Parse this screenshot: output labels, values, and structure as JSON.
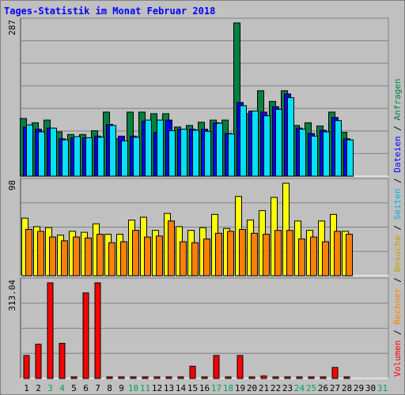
{
  "title": "Tages-Statistik im Monat Februar 2018",
  "chart_data": [
    {
      "type": "bar",
      "categories": [
        "1",
        "2",
        "3",
        "4",
        "5",
        "6",
        "7",
        "8",
        "9",
        "10",
        "11",
        "12",
        "13",
        "14",
        "15",
        "16",
        "17",
        "18",
        "19",
        "20",
        "21",
        "22",
        "23",
        "24",
        "25",
        "26",
        "27",
        "28",
        "29",
        "30",
        "31"
      ],
      "weekend_categories": [
        "3",
        "4",
        "10",
        "11",
        "17",
        "18",
        "24",
        "25",
        "31"
      ],
      "ymax_label": "287",
      "ylim": [
        0,
        287
      ],
      "series": [
        {
          "name": "Anfragen",
          "color": "#008040",
          "values": [
            108,
            100,
            105,
            83,
            78,
            78,
            85,
            120,
            70,
            120,
            120,
            117,
            117,
            92,
            95,
            101,
            105,
            105,
            287,
            117,
            160,
            140,
            160,
            95,
            100,
            94,
            120,
            82,
            0,
            0,
            0
          ]
        },
        {
          "name": "Dateien",
          "color": "#0000ff",
          "values": [
            92,
            88,
            90,
            70,
            72,
            72,
            75,
            97,
            75,
            75,
            103,
            82,
            105,
            88,
            88,
            88,
            100,
            80,
            138,
            122,
            120,
            130,
            154,
            90,
            80,
            86,
            110,
            70,
            0,
            0,
            0
          ]
        },
        {
          "name": "Seiten",
          "color": "#00e0ff",
          "values": [
            96,
            83,
            90,
            68,
            74,
            72,
            73,
            95,
            66,
            73,
            105,
            105,
            85,
            88,
            86,
            84,
            99,
            79,
            132,
            122,
            113,
            125,
            147,
            88,
            75,
            83,
            104,
            68,
            0,
            0,
            0
          ]
        }
      ]
    },
    {
      "type": "bar",
      "categories": [
        "1",
        "2",
        "3",
        "4",
        "5",
        "6",
        "7",
        "8",
        "9",
        "10",
        "11",
        "12",
        "13",
        "14",
        "15",
        "16",
        "17",
        "18",
        "19",
        "20",
        "21",
        "22",
        "23",
        "24",
        "25",
        "26",
        "27",
        "28",
        "29",
        "30",
        "31"
      ],
      "ymax_label": "98",
      "ylim": [
        0,
        98
      ],
      "series": [
        {
          "name": "Besuche",
          "color": "#ffff00",
          "values": [
            61,
            52,
            51,
            43,
            47,
            46,
            55,
            44,
            44,
            59,
            62,
            48,
            66,
            52,
            48,
            51,
            65,
            50,
            84,
            59,
            69,
            83,
            98,
            58,
            48,
            58,
            65,
            47,
            0,
            0,
            0
          ]
        },
        {
          "name": "Rechner",
          "color": "#ff8000",
          "values": [
            49,
            47,
            41,
            37,
            41,
            40,
            44,
            35,
            36,
            48,
            41,
            42,
            58,
            36,
            35,
            39,
            45,
            47,
            49,
            45,
            44,
            48,
            48,
            39,
            41,
            36,
            47,
            44,
            0,
            0,
            0
          ]
        }
      ]
    },
    {
      "type": "bar",
      "categories": [
        "1",
        "2",
        "3",
        "4",
        "5",
        "6",
        "7",
        "8",
        "9",
        "10",
        "11",
        "12",
        "13",
        "14",
        "15",
        "16",
        "17",
        "18",
        "19",
        "20",
        "21",
        "22",
        "23",
        "24",
        "25",
        "26",
        "27",
        "28",
        "29",
        "30",
        "31"
      ],
      "ymax_label": "313.04",
      "ylim": [
        0,
        313.04
      ],
      "series": [
        {
          "name": "Volumen",
          "color": "#ff0000",
          "values": [
            75,
            112,
            313.04,
            115,
            5,
            280,
            313.04,
            5,
            5,
            5,
            5,
            5,
            5,
            5,
            40,
            5,
            75,
            5,
            75,
            5,
            8,
            5,
            5,
            5,
            5,
            5,
            36,
            5,
            0,
            0,
            0
          ]
        }
      ]
    }
  ],
  "legend_right": [
    {
      "text": "Volumen",
      "color": "#ff0000"
    },
    {
      "text": "Rechner",
      "color": "#ff8000"
    },
    {
      "text": "Besuche",
      "color": "#c0a000"
    },
    {
      "text": "Seiten",
      "color": "#00b0e0"
    },
    {
      "text": "Dateien",
      "color": "#0000ff"
    },
    {
      "text": "Anfragen",
      "color": "#008040"
    }
  ],
  "colors": {
    "background": "#c0c0c0",
    "grid": "#808080",
    "title": "#0000ff",
    "weekday_label": "#000000",
    "weekend_label": "#00a060"
  }
}
